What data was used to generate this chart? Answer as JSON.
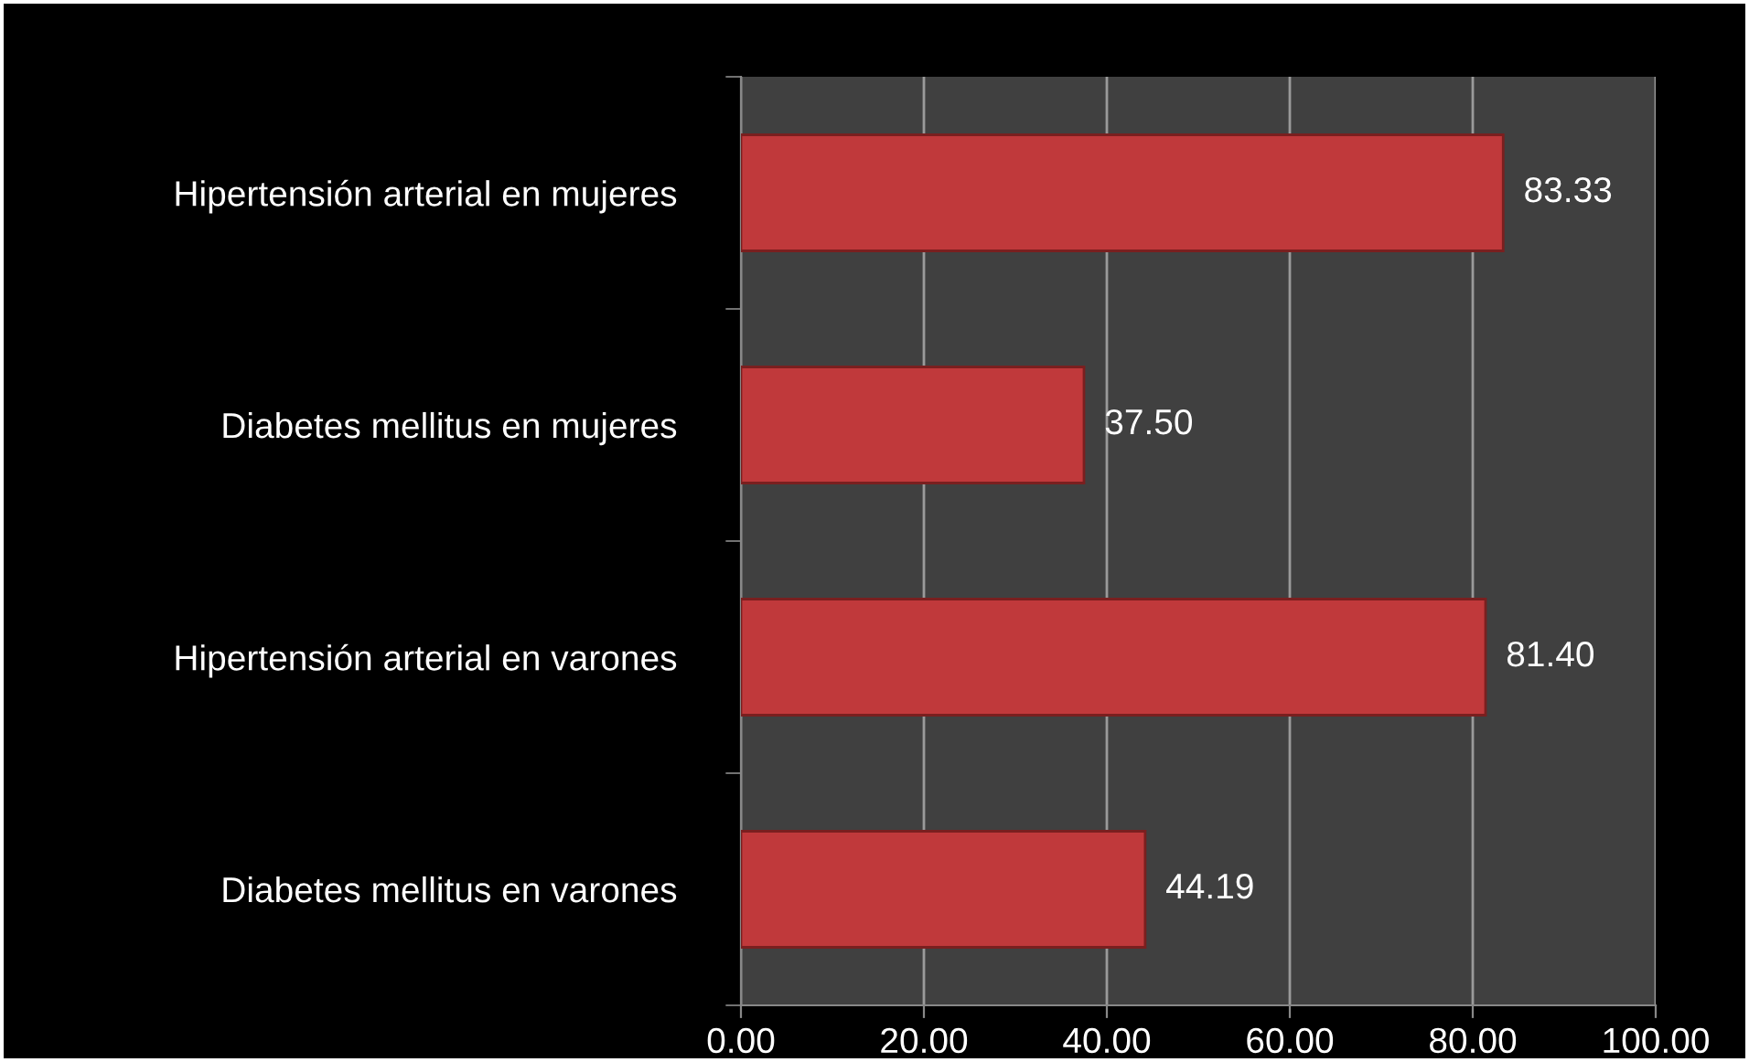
{
  "chart_data": {
    "type": "bar",
    "orientation": "horizontal",
    "categories": [
      "Hipertensión arterial en mujeres",
      "Diabetes mellitus en mujeres",
      "Hipertensión arterial en varones",
      "Diabetes mellitus en varones"
    ],
    "values": [
      83.33,
      37.5,
      81.4,
      44.19
    ],
    "value_labels": [
      "83.33",
      "37.50",
      "81.40",
      "44.19"
    ],
    "color": "#c0393b",
    "xlim": [
      0,
      100
    ],
    "xticks": [
      {
        "value": 0,
        "label": "0.00"
      },
      {
        "value": 20,
        "label": "20.00"
      },
      {
        "value": 40,
        "label": "40.00"
      },
      {
        "value": 60,
        "label": "60.00"
      },
      {
        "value": 80,
        "label": "80.00"
      },
      {
        "value": 100,
        "label": "100.00"
      }
    ],
    "grid": "x"
  }
}
